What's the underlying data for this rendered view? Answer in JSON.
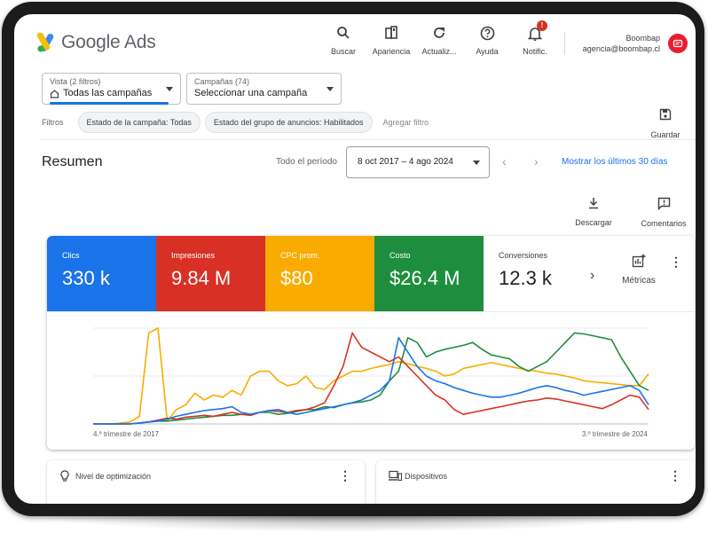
{
  "brand": {
    "name": "Google Ads"
  },
  "toolbar": [
    {
      "label": "Buscar",
      "icon": "search-icon"
    },
    {
      "label": "Apariencia",
      "icon": "appearance-icon"
    },
    {
      "label": "Actualiz...",
      "icon": "refresh-icon"
    },
    {
      "label": "Ayuda",
      "icon": "help-icon"
    },
    {
      "label": "Notific.",
      "icon": "bell-icon",
      "badge": "!"
    }
  ],
  "account": {
    "name": "Boombap",
    "email": "agencia@boombap.cl"
  },
  "view_selector": {
    "label": "Vista (2 filtros)",
    "value": "Todas las campañas"
  },
  "campaign_selector": {
    "label": "Campañas (74)",
    "value": "Seleccionar una campaña"
  },
  "filters": {
    "label": "Filtros",
    "chips": [
      "Estado de la campaña: Todas",
      "Estado del grupo de anuncios: Habilitados"
    ],
    "add": "Agregar filtro",
    "save": "Guardar"
  },
  "summary": {
    "title": "Resumen",
    "period_label": "Todo el período",
    "date_range": "8 oct 2017 – 4 ago 2024",
    "show_last": "Mostrar los últimos 30 días",
    "download": "Descargar",
    "comments": "Comentarios"
  },
  "metric_tiles": [
    {
      "name": "Clics",
      "value": "330 k",
      "color": "#1a73e8"
    },
    {
      "name": "Impresiones",
      "value": "9.84 M",
      "color": "#d93025"
    },
    {
      "name": "CPC prom.",
      "value": "$80",
      "color": "#f9ab00"
    },
    {
      "name": "Costo",
      "value": "$26.4 M",
      "color": "#1e8e3e"
    },
    {
      "name": "Conversiones",
      "value": "12.3 k",
      "color": "#ffffff"
    }
  ],
  "metrics_button": "Métricas",
  "chart_data": {
    "type": "line",
    "x_start_label": "4.º trimestre de 2017",
    "x_end_label": "3.º trimestre de 2024",
    "ylim": [
      0,
      100
    ],
    "grid": true,
    "series": [
      {
        "color": "#f9ab00",
        "values": [
          0,
          0,
          0,
          1,
          2,
          8,
          95,
          100,
          3,
          15,
          20,
          32,
          25,
          30,
          28,
          35,
          30,
          50,
          55,
          55,
          45,
          40,
          42,
          50,
          38,
          36,
          45,
          50,
          55,
          55,
          58,
          60,
          62,
          65,
          63,
          60,
          58,
          55,
          50,
          52,
          58,
          60,
          62,
          64,
          62,
          60,
          58,
          56,
          55,
          53,
          52,
          50,
          48,
          45,
          44,
          43,
          42,
          41,
          40,
          40,
          52
        ]
      },
      {
        "color": "#1e8e3e",
        "values": [
          0,
          0,
          0,
          0,
          0,
          1,
          2,
          3,
          3,
          4,
          5,
          6,
          7,
          8,
          9,
          9,
          10,
          10,
          12,
          12,
          10,
          11,
          13,
          15,
          15,
          18,
          17,
          20,
          22,
          23,
          25,
          30,
          45,
          55,
          90,
          85,
          70,
          75,
          78,
          80,
          82,
          85,
          78,
          72,
          70,
          68,
          60,
          55,
          60,
          65,
          75,
          85,
          95,
          94,
          92,
          90,
          88,
          70,
          55,
          40,
          35
        ]
      },
      {
        "color": "#d93025",
        "values": [
          0,
          0,
          0,
          0,
          0,
          1,
          2,
          4,
          6,
          5,
          7,
          8,
          9,
          8,
          10,
          12,
          10,
          9,
          12,
          14,
          13,
          12,
          14,
          15,
          18,
          22,
          40,
          60,
          95,
          80,
          75,
          70,
          65,
          70,
          60,
          50,
          40,
          30,
          25,
          15,
          10,
          12,
          14,
          16,
          18,
          20,
          22,
          24,
          25,
          27,
          26,
          24,
          22,
          20,
          18,
          16,
          20,
          25,
          30,
          28,
          15
        ]
      },
      {
        "color": "#1a73e8",
        "values": [
          0,
          0,
          0,
          0,
          0,
          1,
          2,
          3,
          5,
          8,
          10,
          12,
          14,
          15,
          16,
          18,
          12,
          10,
          12,
          14,
          15,
          12,
          10,
          12,
          14,
          16,
          18,
          20,
          22,
          25,
          30,
          35,
          45,
          90,
          75,
          60,
          50,
          45,
          42,
          38,
          35,
          32,
          30,
          28,
          28,
          30,
          32,
          35,
          38,
          40,
          38,
          35,
          33,
          30,
          32,
          34,
          36,
          38,
          40,
          35,
          20
        ]
      }
    ]
  },
  "panels": [
    {
      "title": "Nivel de optimización",
      "icon": "lightbulb-icon"
    },
    {
      "title": "Dispositivos",
      "icon": "devices-icon"
    }
  ]
}
